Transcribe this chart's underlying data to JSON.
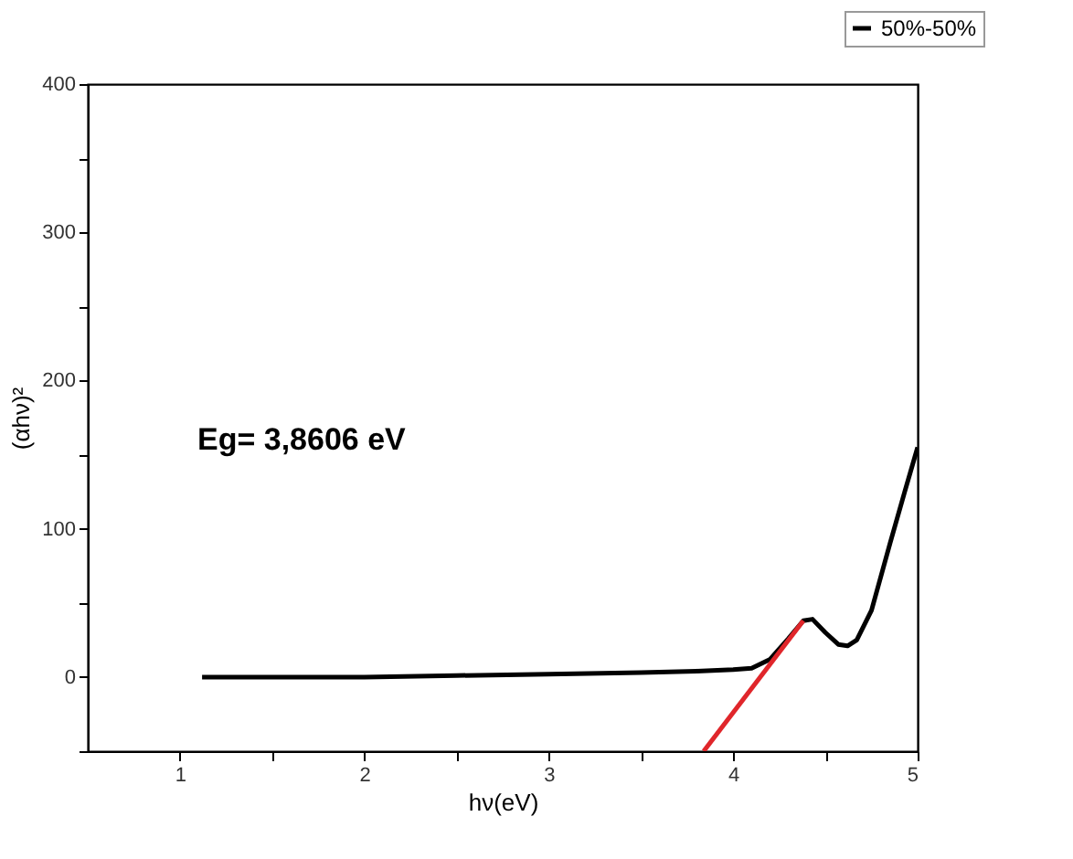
{
  "chart_data": {
    "type": "line",
    "xlabel": "hν(eV)",
    "ylabel": "(αhν)²",
    "xlim": [
      0.5,
      5
    ],
    "ylim": [
      -50,
      400
    ],
    "xticks": [
      1,
      {
        "value": 1.5,
        "label": null
      },
      2,
      {
        "value": 2.5,
        "label": null
      },
      3,
      {
        "value": 3.5,
        "label": null
      },
      4,
      {
        "value": 4.5,
        "label": null
      },
      5
    ],
    "yticks": [
      {
        "value": -50,
        "label": null
      },
      0,
      {
        "value": 50,
        "label": null
      },
      100,
      {
        "value": 150,
        "label": null
      },
      200,
      {
        "value": 250,
        "label": null
      },
      300,
      {
        "value": 350,
        "label": null
      },
      400
    ],
    "grid": false,
    "legend": "top right",
    "line_style": "solid",
    "marker": "none",
    "annotations": [
      "Eg= 3,8606 eV"
    ],
    "series": [
      {
        "name": "50%-50%",
        "color": "#000000",
        "x": [
          1.12,
          1.5,
          2,
          2.5,
          3,
          3.5,
          3.8,
          4.0,
          4.1,
          4.2,
          4.3,
          4.38,
          4.43,
          4.5,
          4.57,
          4.62,
          4.67,
          4.75,
          4.85,
          4.93,
          5.0
        ],
        "values": [
          0,
          0,
          0,
          1,
          2,
          3,
          4,
          5,
          6,
          12,
          26,
          38,
          39,
          30,
          22,
          21,
          25,
          45,
          90,
          125,
          155
        ]
      },
      {
        "type": "line",
        "color": "#e0262b",
        "x": [
          3.84,
          4.38
        ],
        "values": [
          -50,
          38
        ]
      }
    ]
  }
}
